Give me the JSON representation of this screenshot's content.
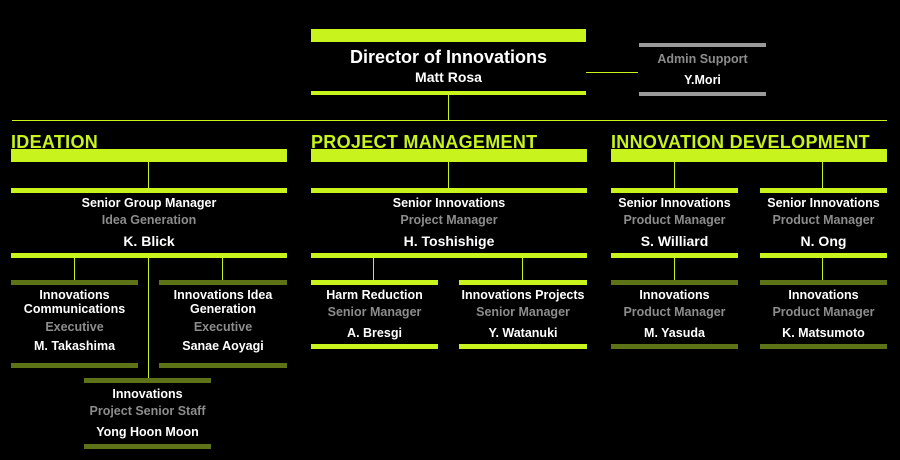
{
  "accent_color": "#c8f31d",
  "director": {
    "title": "Director of Innovations",
    "name": "Matt Rosa"
  },
  "admin": {
    "title": "Admin Support",
    "name": "Y.Mori"
  },
  "departments": [
    {
      "heading": "IDEATION",
      "lead": {
        "title": "Senior Group Manager",
        "subtitle": "Idea Generation",
        "name": "K. Blick"
      },
      "reports": [
        {
          "title": "Innovations Communications",
          "subtitle": "Executive",
          "name": "M. Takashima"
        },
        {
          "title": "Innovations Idea Generation",
          "subtitle": "Executive",
          "name": "Sanae Aoyagi"
        },
        {
          "title": "Innovations",
          "subtitle": "Project Senior Staff",
          "name": "Yong Hoon Moon"
        }
      ]
    },
    {
      "heading": "PROJECT MANAGEMENT",
      "lead": {
        "title": "Senior Innovations",
        "subtitle": "Project Manager",
        "name": "H. Toshishige"
      },
      "reports": [
        {
          "title": "Harm Reduction",
          "subtitle": "Senior Manager",
          "name": "A. Bresgi"
        },
        {
          "title": "Innovations Projects",
          "subtitle": "Senior Manager",
          "name": "Y. Watanuki"
        }
      ]
    },
    {
      "heading": "INNOVATION DEVELOPMENT",
      "leads": [
        {
          "title": "Senior Innovations",
          "subtitle": "Product Manager",
          "name": "S. Williard",
          "report": {
            "title": "Innovations",
            "subtitle": "Product Manager",
            "name": "M. Yasuda"
          }
        },
        {
          "title": "Senior Innovations",
          "subtitle": "Product Manager",
          "name": "N. Ong",
          "report": {
            "title": "Innovations",
            "subtitle": "Product Manager",
            "name": "K. Matsumoto"
          }
        }
      ]
    }
  ]
}
